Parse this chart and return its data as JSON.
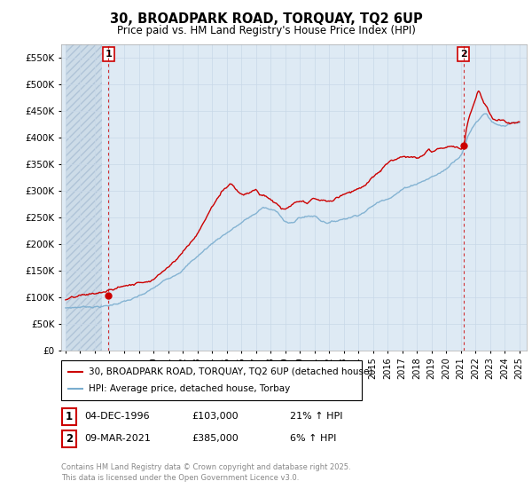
{
  "title": "30, BROADPARK ROAD, TORQUAY, TQ2 6UP",
  "subtitle": "Price paid vs. HM Land Registry's House Price Index (HPI)",
  "legend_line1": "30, BROADPARK ROAD, TORQUAY, TQ2 6UP (detached house)",
  "legend_line2": "HPI: Average price, detached house, Torbay",
  "annotation1_date": "04-DEC-1996",
  "annotation1_price": "£103,000",
  "annotation1_hpi": "21% ↑ HPI",
  "annotation2_date": "09-MAR-2021",
  "annotation2_price": "£385,000",
  "annotation2_hpi": "6% ↑ HPI",
  "footer": "Contains HM Land Registry data © Crown copyright and database right 2025.\nThis data is licensed under the Open Government Licence v3.0.",
  "red_color": "#cc0000",
  "blue_color": "#7aadcf",
  "grid_color": "#c8d8e8",
  "plot_bg": "#deeaf4",
  "hatch_color": "#b0c8dc",
  "ylim": [
    0,
    575000
  ],
  "yticks": [
    0,
    50000,
    100000,
    150000,
    200000,
    250000,
    300000,
    350000,
    400000,
    450000,
    500000,
    550000
  ],
  "sale1_year": 1996.92,
  "sale1_price": 103000,
  "sale2_year": 2021.18,
  "sale2_price": 385000,
  "xmin": 1994,
  "xmax": 2025.5
}
